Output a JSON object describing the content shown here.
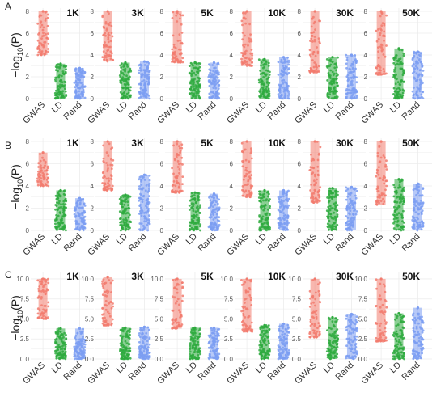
{
  "panels": [
    "A",
    "B",
    "C"
  ],
  "ylabel": {
    "prefix": "−log",
    "sub": "10",
    "suffix": "(P)"
  },
  "categories": [
    "GWAS",
    "LD",
    "Rand"
  ],
  "colors": {
    "GWAS": "#F27B6E",
    "LD": "#2EAA3E",
    "Rand": "#7B9DF2",
    "grid": "#ECECEC"
  },
  "chart_data": [
    {
      "type": "scatter",
      "panel": "A",
      "ylim": [
        0,
        8
      ],
      "yticks": [
        0,
        2,
        4,
        6,
        8
      ],
      "grid": true,
      "facets": [
        {
          "label": "1K",
          "series": [
            {
              "name": "GWAS",
              "min": 4.0,
              "max": 8.0
            },
            {
              "name": "LD",
              "min": 0.0,
              "max": 3.2
            },
            {
              "name": "Rand",
              "min": 0.0,
              "max": 2.8
            }
          ]
        },
        {
          "label": "3K",
          "series": [
            {
              "name": "GWAS",
              "min": 3.4,
              "max": 8.0
            },
            {
              "name": "LD",
              "min": 0.0,
              "max": 3.3
            },
            {
              "name": "Rand",
              "min": 0.0,
              "max": 3.4
            }
          ]
        },
        {
          "label": "5K",
          "series": [
            {
              "name": "GWAS",
              "min": 3.3,
              "max": 8.0
            },
            {
              "name": "LD",
              "min": 0.0,
              "max": 3.3
            },
            {
              "name": "Rand",
              "min": 0.0,
              "max": 3.3
            }
          ]
        },
        {
          "label": "10K",
          "series": [
            {
              "name": "GWAS",
              "min": 3.0,
              "max": 8.0
            },
            {
              "name": "LD",
              "min": 0.0,
              "max": 3.6
            },
            {
              "name": "Rand",
              "min": 0.0,
              "max": 3.8
            }
          ]
        },
        {
          "label": "30K",
          "series": [
            {
              "name": "GWAS",
              "min": 2.4,
              "max": 8.0
            },
            {
              "name": "LD",
              "min": 0.0,
              "max": 3.8
            },
            {
              "name": "Rand",
              "min": 0.0,
              "max": 4.0
            }
          ]
        },
        {
          "label": "50K",
          "series": [
            {
              "name": "GWAS",
              "min": 2.2,
              "max": 8.0
            },
            {
              "name": "LD",
              "min": 0.0,
              "max": 4.6
            },
            {
              "name": "Rand",
              "min": 0.0,
              "max": 4.3
            }
          ]
        }
      ]
    },
    {
      "type": "scatter",
      "panel": "B",
      "ylim": [
        0,
        8
      ],
      "yticks": [
        0,
        2,
        4,
        6,
        8
      ],
      "grid": true,
      "facets": [
        {
          "label": "1K",
          "series": [
            {
              "name": "GWAS",
              "min": 4.0,
              "max": 7.0
            },
            {
              "name": "LD",
              "min": 0.0,
              "max": 3.6
            },
            {
              "name": "Rand",
              "min": 0.0,
              "max": 2.9
            }
          ]
        },
        {
          "label": "3K",
          "series": [
            {
              "name": "GWAS",
              "min": 3.6,
              "max": 8.0
            },
            {
              "name": "LD",
              "min": 0.0,
              "max": 3.2
            },
            {
              "name": "Rand",
              "min": 0.0,
              "max": 5.0
            }
          ]
        },
        {
          "label": "5K",
          "series": [
            {
              "name": "GWAS",
              "min": 3.4,
              "max": 8.0
            },
            {
              "name": "LD",
              "min": 0.0,
              "max": 3.4
            },
            {
              "name": "Rand",
              "min": 0.0,
              "max": 3.3
            }
          ]
        },
        {
          "label": "10K",
          "series": [
            {
              "name": "GWAS",
              "min": 3.0,
              "max": 8.0
            },
            {
              "name": "LD",
              "min": 0.0,
              "max": 3.6
            },
            {
              "name": "Rand",
              "min": 0.0,
              "max": 3.6
            }
          ]
        },
        {
          "label": "30K",
          "series": [
            {
              "name": "GWAS",
              "min": 2.5,
              "max": 8.0
            },
            {
              "name": "LD",
              "min": 0.0,
              "max": 3.8
            },
            {
              "name": "Rand",
              "min": 0.0,
              "max": 3.9
            }
          ]
        },
        {
          "label": "50K",
          "series": [
            {
              "name": "GWAS",
              "min": 2.3,
              "max": 8.0
            },
            {
              "name": "LD",
              "min": 0.0,
              "max": 4.6
            },
            {
              "name": "Rand",
              "min": 0.0,
              "max": 4.2
            }
          ]
        }
      ]
    },
    {
      "type": "scatter",
      "panel": "C",
      "ylim": [
        0,
        10.5
      ],
      "yticks": [
        0.0,
        2.5,
        5.0,
        7.5,
        10.0
      ],
      "grid": true,
      "facets": [
        {
          "label": "1K",
          "series": [
            {
              "name": "GWAS",
              "min": 5.0,
              "max": 10.0
            },
            {
              "name": "LD",
              "min": 0.0,
              "max": 3.8
            },
            {
              "name": "Rand",
              "min": 0.0,
              "max": 3.8
            }
          ]
        },
        {
          "label": "3K",
          "series": [
            {
              "name": "GWAS",
              "min": 4.2,
              "max": 10.2
            },
            {
              "name": "LD",
              "min": 0.0,
              "max": 3.9
            },
            {
              "name": "Rand",
              "min": 0.0,
              "max": 4.0
            }
          ]
        },
        {
          "label": "5K",
          "series": [
            {
              "name": "GWAS",
              "min": 3.8,
              "max": 10.0
            },
            {
              "name": "LD",
              "min": 0.0,
              "max": 3.9
            },
            {
              "name": "Rand",
              "min": 0.0,
              "max": 3.9
            }
          ]
        },
        {
          "label": "10K",
          "series": [
            {
              "name": "GWAS",
              "min": 3.4,
              "max": 10.0
            },
            {
              "name": "LD",
              "min": 0.0,
              "max": 4.2
            },
            {
              "name": "Rand",
              "min": 0.0,
              "max": 4.4
            }
          ]
        },
        {
          "label": "30K",
          "series": [
            {
              "name": "GWAS",
              "min": 2.7,
              "max": 10.0
            },
            {
              "name": "LD",
              "min": 0.0,
              "max": 5.2
            },
            {
              "name": "Rand",
              "min": 0.0,
              "max": 5.6
            }
          ]
        },
        {
          "label": "50K",
          "series": [
            {
              "name": "GWAS",
              "min": 2.2,
              "max": 10.0
            },
            {
              "name": "LD",
              "min": 0.0,
              "max": 5.7
            },
            {
              "name": "Rand",
              "min": 0.0,
              "max": 6.4
            }
          ]
        }
      ]
    }
  ]
}
